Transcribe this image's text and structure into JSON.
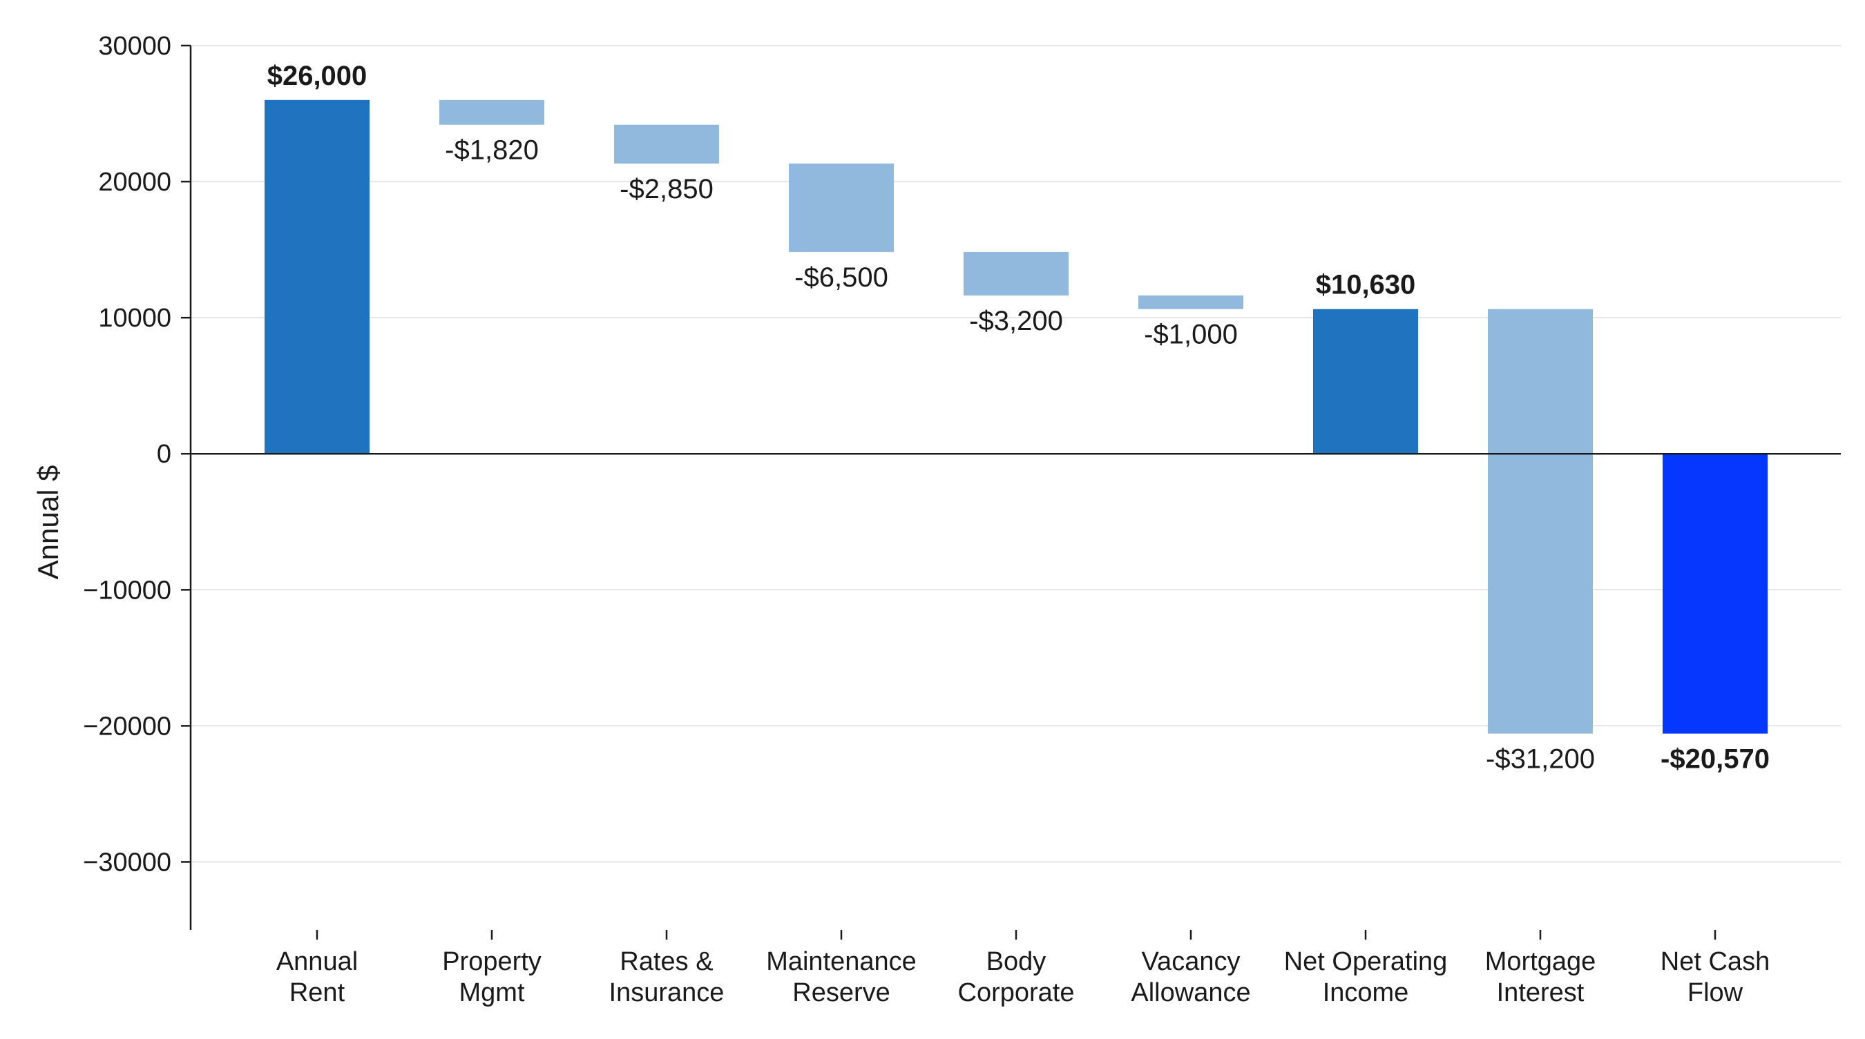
{
  "chart_data": {
    "type": "bar",
    "subtype": "waterfall",
    "title": "",
    "xlabel": "",
    "ylabel": "Annual $",
    "ylim": [
      -35000,
      30000
    ],
    "yticks": [
      30000,
      20000,
      10000,
      0,
      -10000,
      -20000,
      -30000
    ],
    "ytick_labels": [
      "30000",
      "20000",
      "10000",
      "0",
      "−10000",
      "−20000",
      "−30000"
    ],
    "grid": true,
    "legend": "none",
    "categories": [
      [
        "Annual",
        "Rent"
      ],
      [
        "Property",
        "Mgmt"
      ],
      [
        "Rates &",
        "Insurance"
      ],
      [
        "Maintenance",
        "Reserve"
      ],
      [
        "Body",
        "Corporate"
      ],
      [
        "Vacancy",
        "Allowance"
      ],
      [
        "Net Operating",
        "Income"
      ],
      [
        "Mortgage",
        "Interest"
      ],
      [
        "Net Cash",
        "Flow"
      ]
    ],
    "bars": [
      {
        "start": 0,
        "end": 26000,
        "kind": "total",
        "label": "$26,000"
      },
      {
        "start": 26000,
        "end": 24180,
        "kind": "delta",
        "label": "-$1,820"
      },
      {
        "start": 24180,
        "end": 21330,
        "kind": "delta",
        "label": "-$2,850"
      },
      {
        "start": 21330,
        "end": 14830,
        "kind": "delta",
        "label": "-$6,500"
      },
      {
        "start": 14830,
        "end": 11630,
        "kind": "delta",
        "label": "-$3,200"
      },
      {
        "start": 11630,
        "end": 10630,
        "kind": "delta",
        "label": "-$1,000"
      },
      {
        "start": 0,
        "end": 10630,
        "kind": "total",
        "label": "$10,630"
      },
      {
        "start": 10630,
        "end": -20570,
        "kind": "delta",
        "label": "-$31,200"
      },
      {
        "start": 0,
        "end": -20570,
        "kind": "final",
        "label": "-$20,570"
      }
    ],
    "colors": {
      "total": "#1f73bf",
      "delta": "#91b8dd",
      "final": "#0537ff",
      "grid": "#dddddd",
      "axis": "#1a1a1a"
    }
  }
}
